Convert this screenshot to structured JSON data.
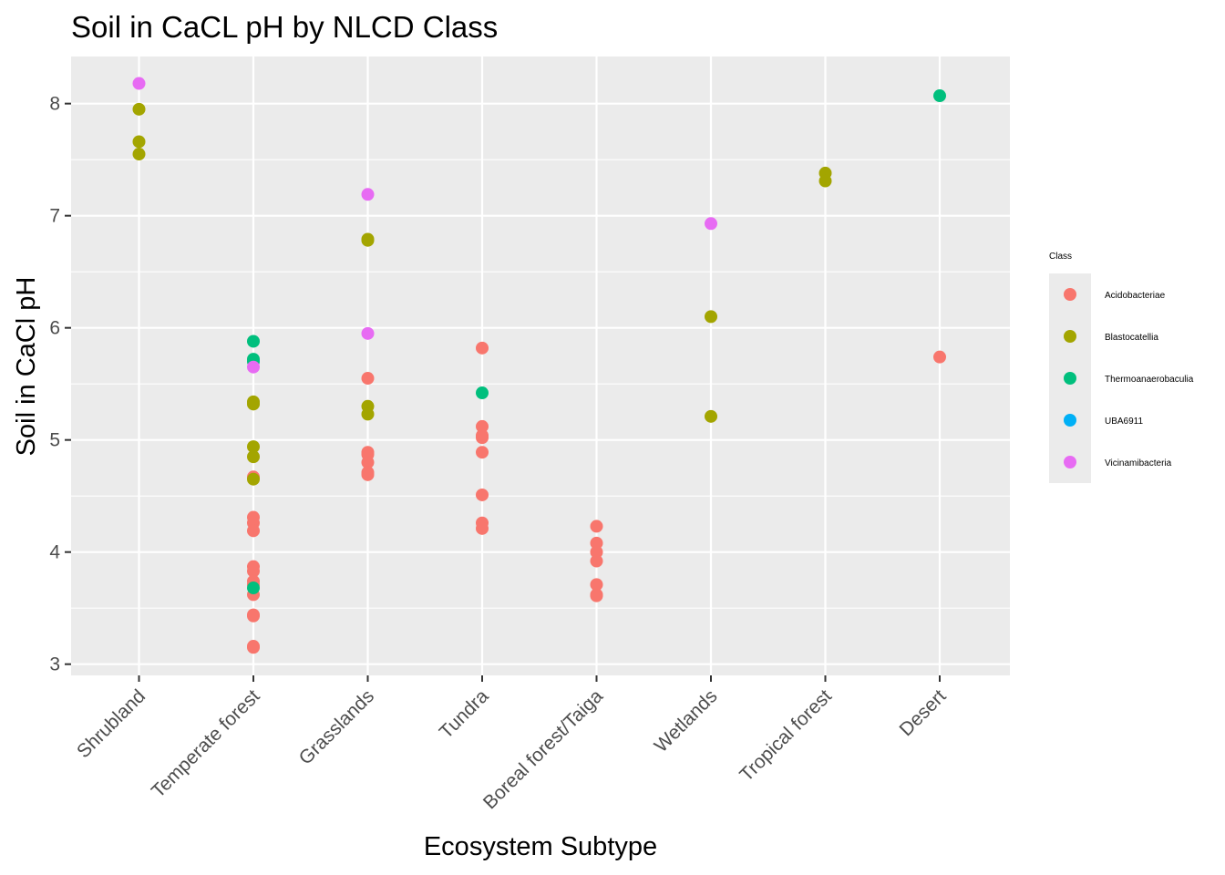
{
  "chart_data": {
    "type": "scatter",
    "title": "Soil in CaCL pH by NLCD Class",
    "xlabel": "Ecosystem Subtype",
    "ylabel": "Soil in CaCl pH",
    "categories": [
      "Shrubland",
      "Temperate forest",
      "Grasslands",
      "Tundra",
      "Boreal forest/Taiga",
      "Wetlands",
      "Tropical forest",
      "Desert"
    ],
    "y_ticks": [
      3,
      4,
      5,
      6,
      7,
      8
    ],
    "ylim": [
      2.9,
      8.42
    ],
    "grid": true,
    "legend": {
      "title": "Class",
      "placement": "right",
      "items": [
        {
          "label": "Acidobacteriae",
          "color": "#F8766D"
        },
        {
          "label": "Blastocatellia",
          "color": "#A3A500"
        },
        {
          "label": "Thermoanaerobaculia",
          "color": "#00BF7D"
        },
        {
          "label": "UBA6911",
          "color": "#00B0F6"
        },
        {
          "label": "Vicinamibacteria",
          "color": "#E76BF3"
        }
      ]
    },
    "series": [
      {
        "name": "Acidobacteriae",
        "color": "#F8766D",
        "points": [
          {
            "x": "Temperate forest",
            "y": 4.67
          },
          {
            "x": "Temperate forest",
            "y": 4.31
          },
          {
            "x": "Temperate forest",
            "y": 4.26
          },
          {
            "x": "Temperate forest",
            "y": 4.19
          },
          {
            "x": "Temperate forest",
            "y": 3.87
          },
          {
            "x": "Temperate forest",
            "y": 3.83
          },
          {
            "x": "Temperate forest",
            "y": 3.74
          },
          {
            "x": "Temperate forest",
            "y": 3.71
          },
          {
            "x": "Temperate forest",
            "y": 3.62
          },
          {
            "x": "Temperate forest",
            "y": 3.44
          },
          {
            "x": "Temperate forest",
            "y": 3.43
          },
          {
            "x": "Temperate forest",
            "y": 3.16
          },
          {
            "x": "Temperate forest",
            "y": 3.15
          },
          {
            "x": "Grasslands",
            "y": 5.55
          },
          {
            "x": "Grasslands",
            "y": 4.89
          },
          {
            "x": "Grasslands",
            "y": 4.87
          },
          {
            "x": "Grasslands",
            "y": 4.8
          },
          {
            "x": "Grasslands",
            "y": 4.71
          },
          {
            "x": "Grasslands",
            "y": 4.69
          },
          {
            "x": "Tundra",
            "y": 5.82
          },
          {
            "x": "Tundra",
            "y": 5.12
          },
          {
            "x": "Tundra",
            "y": 5.04
          },
          {
            "x": "Tundra",
            "y": 5.02
          },
          {
            "x": "Tundra",
            "y": 4.89
          },
          {
            "x": "Tundra",
            "y": 4.51
          },
          {
            "x": "Tundra",
            "y": 4.26
          },
          {
            "x": "Tundra",
            "y": 4.21
          },
          {
            "x": "Boreal forest/Taiga",
            "y": 4.23
          },
          {
            "x": "Boreal forest/Taiga",
            "y": 4.08
          },
          {
            "x": "Boreal forest/Taiga",
            "y": 4.0
          },
          {
            "x": "Boreal forest/Taiga",
            "y": 3.92
          },
          {
            "x": "Boreal forest/Taiga",
            "y": 3.71
          },
          {
            "x": "Boreal forest/Taiga",
            "y": 3.62
          },
          {
            "x": "Boreal forest/Taiga",
            "y": 3.61
          },
          {
            "x": "Desert",
            "y": 5.74
          }
        ]
      },
      {
        "name": "Blastocatellia",
        "color": "#A3A500",
        "points": [
          {
            "x": "Shrubland",
            "y": 7.95
          },
          {
            "x": "Shrubland",
            "y": 7.66
          },
          {
            "x": "Shrubland",
            "y": 7.55
          },
          {
            "x": "Temperate forest",
            "y": 5.34
          },
          {
            "x": "Temperate forest",
            "y": 5.32
          },
          {
            "x": "Temperate forest",
            "y": 4.94
          },
          {
            "x": "Temperate forest",
            "y": 4.85
          },
          {
            "x": "Temperate forest",
            "y": 4.65
          },
          {
            "x": "Grasslands",
            "y": 6.79
          },
          {
            "x": "Grasslands",
            "y": 6.78
          },
          {
            "x": "Grasslands",
            "y": 5.3
          },
          {
            "x": "Grasslands",
            "y": 5.23
          },
          {
            "x": "Wetlands",
            "y": 6.1
          },
          {
            "x": "Wetlands",
            "y": 5.21
          },
          {
            "x": "Tropical forest",
            "y": 7.38
          },
          {
            "x": "Tropical forest",
            "y": 7.31
          }
        ]
      },
      {
        "name": "Thermoanaerobaculia",
        "color": "#00BF7D",
        "points": [
          {
            "x": "Temperate forest",
            "y": 5.88
          },
          {
            "x": "Temperate forest",
            "y": 5.72
          },
          {
            "x": "Temperate forest",
            "y": 5.7
          },
          {
            "x": "Temperate forest",
            "y": 3.68
          },
          {
            "x": "Tundra",
            "y": 5.42
          },
          {
            "x": "Desert",
            "y": 8.07
          }
        ]
      },
      {
        "name": "UBA6911",
        "color": "#00B0F6",
        "points": []
      },
      {
        "name": "Vicinamibacteria",
        "color": "#E76BF3",
        "points": [
          {
            "x": "Shrubland",
            "y": 8.18
          },
          {
            "x": "Temperate forest",
            "y": 5.65
          },
          {
            "x": "Grasslands",
            "y": 7.19
          },
          {
            "x": "Grasslands",
            "y": 5.95
          },
          {
            "x": "Wetlands",
            "y": 6.93
          }
        ]
      }
    ]
  }
}
